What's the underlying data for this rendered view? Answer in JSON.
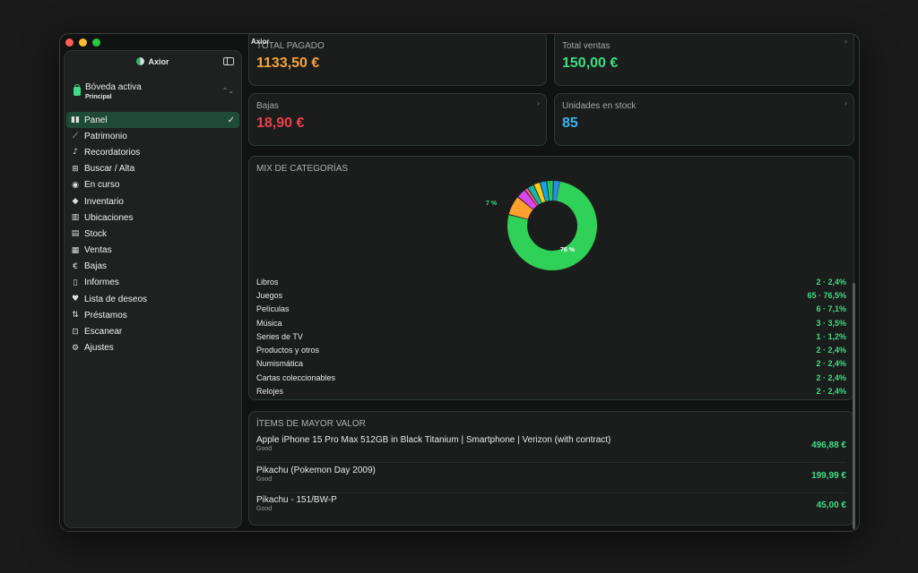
{
  "window": {
    "title": "Axior"
  },
  "sidebar": {
    "app_name": "Axior",
    "vault": {
      "title": "Bóveda activa",
      "subtitle": "Principal"
    },
    "items": [
      {
        "label": "Panel",
        "icon": "chart-bar-icon",
        "glyph": "▮▮"
      },
      {
        "label": "Patrimonio",
        "icon": "line-chart-icon",
        "glyph": "⟋"
      },
      {
        "label": "Recordatorios",
        "icon": "bell-icon",
        "glyph": "♪"
      },
      {
        "label": "Buscar / Alta",
        "icon": "grid-icon",
        "glyph": "⊞"
      },
      {
        "label": "En curso",
        "icon": "clock-icon",
        "glyph": "◉"
      },
      {
        "label": "Inventario",
        "icon": "box-icon",
        "glyph": "◆"
      },
      {
        "label": "Ubicaciones",
        "icon": "map-icon",
        "glyph": "▥"
      },
      {
        "label": "Stock",
        "icon": "archive-icon",
        "glyph": "▤"
      },
      {
        "label": "Ventas",
        "icon": "sales-icon",
        "glyph": "▦"
      },
      {
        "label": "Bajas",
        "icon": "euro-coin-icon",
        "glyph": "€"
      },
      {
        "label": "Informes",
        "icon": "document-icon",
        "glyph": "▯"
      },
      {
        "label": "Lista de deseos",
        "icon": "heart-icon",
        "glyph": "♥"
      },
      {
        "label": "Préstamos",
        "icon": "swap-arrows-icon",
        "glyph": "⇅"
      },
      {
        "label": "Escanear",
        "icon": "scan-icon",
        "glyph": "⊡"
      },
      {
        "label": "Ajustes",
        "icon": "gear-icon",
        "glyph": "⚙"
      }
    ],
    "check_glyph": "✓"
  },
  "stats": [
    {
      "label": "TOTAL PAGADO",
      "value": "1133,50 €",
      "color": "#f5a33b"
    },
    {
      "label": "Total ventas",
      "value": "150,00 €",
      "color": "#3ddc84"
    },
    {
      "label": "Bajas",
      "value": "18,90 €",
      "color": "#e8414a"
    },
    {
      "label": "Unidades en stock",
      "value": "85",
      "color": "#3ab4f2"
    }
  ],
  "chevron_glyph": "›",
  "category_mix": {
    "title": "MIX DE CATEGORÍAS",
    "donut_labels": [
      "7 %",
      "76 %"
    ],
    "categories": [
      {
        "name": "Libros",
        "value": "2 · 2,4%",
        "pct": 2.4,
        "color": "#2c8ae8"
      },
      {
        "name": "Juegos",
        "value": "65 · 76,5%",
        "pct": 76.5,
        "color": "#30d158"
      },
      {
        "name": "Películas",
        "value": "6 · 7,1%",
        "pct": 7.1,
        "color": "#ff9f2e"
      },
      {
        "name": "Música",
        "value": "3 · 3,5%",
        "pct": 3.5,
        "color": "#d946ef"
      },
      {
        "name": "Series de TV",
        "value": "1 · 1,2%",
        "pct": 1.2,
        "color": "#ff5d7a"
      },
      {
        "name": "Productos y otros",
        "value": "2 · 2,4%",
        "pct": 2.4,
        "color": "#14b8a6"
      },
      {
        "name": "Numismática",
        "value": "2 · 2,4%",
        "pct": 2.4,
        "color": "#facc15"
      },
      {
        "name": "Cartas coleccionables",
        "value": "2 · 2,4%",
        "pct": 2.4,
        "color": "#0ea5e9"
      },
      {
        "name": "Relojes",
        "value": "2 · 2,4%",
        "pct": 2.4,
        "color": "#22c55e"
      }
    ]
  },
  "top_items": {
    "title": "ÍTEMS DE MAYOR VALOR",
    "items": [
      {
        "name": "Apple iPhone 15 Pro Max 512GB in Black Titanium | Smartphone | Verizon (with contract)",
        "condition": "Good",
        "price": "496,88 €"
      },
      {
        "name": "Pikachu (Pokemon Day 2009)",
        "condition": "Good",
        "price": "199,99 €"
      },
      {
        "name": "Pikachu - 151/BW-P",
        "condition": "Good",
        "price": "45,00 €"
      }
    ]
  }
}
